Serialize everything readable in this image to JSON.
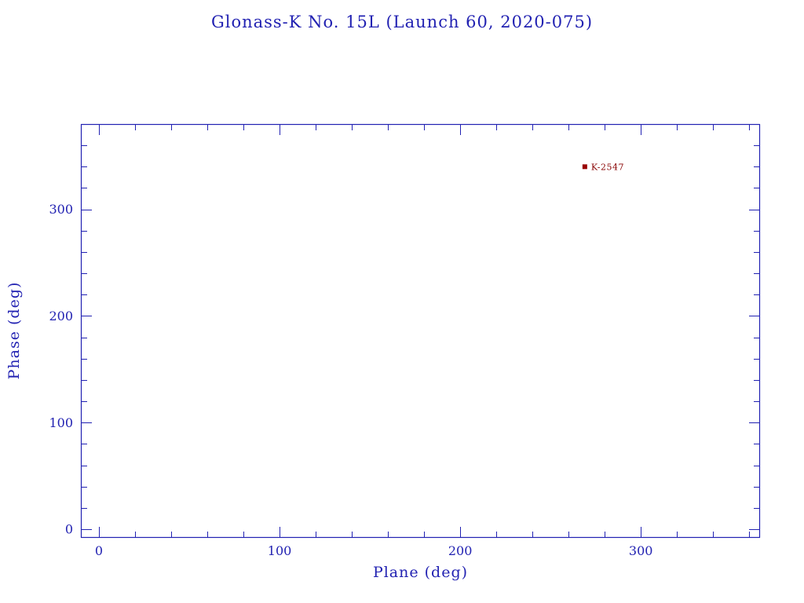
{
  "window": {
    "title": "Glonass-K No. 15L (Launch 60, 2020-075)"
  },
  "colors": {
    "axis": "#2222b2",
    "marker": "#990000",
    "marker_label": "#880000",
    "background": "#ffffff"
  },
  "chart_data": {
    "type": "scatter",
    "title": "Glonass-K No. 15L (Launch 60, 2020-075)",
    "xlabel": "Plane (deg)",
    "ylabel": "Phase (deg)",
    "xlim": [
      -10,
      366
    ],
    "ylim": [
      -8,
      380
    ],
    "xticks": [
      0,
      100,
      200,
      300
    ],
    "yticks": [
      0,
      100,
      200,
      300
    ],
    "minor_tick_step": 20,
    "grid": false,
    "legend": "none",
    "points": [
      {
        "x": 269,
        "y": 340,
        "label": "K-2547",
        "marker": "square"
      }
    ]
  }
}
